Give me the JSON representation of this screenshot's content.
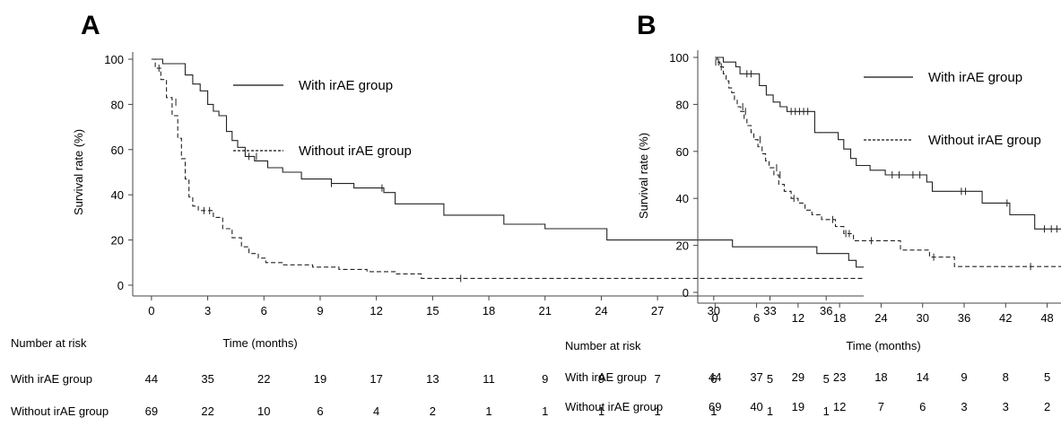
{
  "chart_data": [
    {
      "type": "line",
      "panel_label": "A",
      "xlabel": "Time (months)",
      "ylabel": "Survival rate (%)",
      "xlim": [
        -1,
        38
      ],
      "ylim": [
        0,
        100
      ],
      "xticks": [
        0,
        3,
        6,
        9,
        12,
        15,
        18,
        21,
        24,
        27,
        30,
        33,
        36
      ],
      "yticks": [
        0,
        20,
        40,
        60,
        80,
        100
      ],
      "grid": false,
      "legend_position": "top-right",
      "series": [
        {
          "name": "With irAE group",
          "style": "solid",
          "x": [
            0,
            0.6,
            0.6,
            1.8,
            1.8,
            2.2,
            2.2,
            2.6,
            2.6,
            3.0,
            3.0,
            3.3,
            3.3,
            3.6,
            3.6,
            4.0,
            4.0,
            4.3,
            4.3,
            4.6,
            4.6,
            5.0,
            5.0,
            5.5,
            5.5,
            6.2,
            6.2,
            7.0,
            7.0,
            8.0,
            8.0,
            9.6,
            9.6,
            10.8,
            10.8,
            12.4,
            12.4,
            13.0,
            13.0,
            15.6,
            15.6,
            18.8,
            18.8,
            21.0,
            21.0,
            24.3,
            24.3,
            31.0,
            31.0,
            35.5,
            35.5,
            37.2,
            37.2,
            37.6,
            37.6,
            38.0
          ],
          "y": [
            100,
            100,
            98,
            98,
            93,
            93,
            89,
            89,
            86,
            86,
            80,
            80,
            77,
            77,
            75,
            75,
            68,
            68,
            64,
            64,
            61,
            61,
            57,
            57,
            55,
            55,
            52,
            52,
            50,
            50,
            47,
            47,
            45,
            45,
            43,
            43,
            41,
            41,
            36,
            36,
            31,
            31,
            27,
            27,
            25,
            25,
            20,
            20,
            17,
            17,
            14,
            14,
            11,
            11,
            8,
            8
          ],
          "censored_x": [
            5.2,
            5.6,
            9.6,
            12.3
          ],
          "censored_y": [
            57,
            57,
            45,
            43
          ]
        },
        {
          "name": "Without irAE group",
          "style": "dashed",
          "x": [
            0,
            0.2,
            0.2,
            0.5,
            0.5,
            0.8,
            0.8,
            1.1,
            1.1,
            1.4,
            1.4,
            1.6,
            1.6,
            1.8,
            1.8,
            2.0,
            2.0,
            2.2,
            2.2,
            2.5,
            2.5,
            3.3,
            3.3,
            3.8,
            3.8,
            4.3,
            4.3,
            4.8,
            4.8,
            5.2,
            5.2,
            5.7,
            5.7,
            6.1,
            6.1,
            7.0,
            7.0,
            8.6,
            8.6,
            10.0,
            10.0,
            11.5,
            11.5,
            13.0,
            13.0,
            14.4,
            14.4,
            38.0
          ],
          "y": [
            100,
            100,
            96,
            96,
            91,
            91,
            83,
            83,
            75,
            75,
            65,
            65,
            56,
            56,
            47,
            47,
            39,
            39,
            35,
            35,
            33,
            33,
            30,
            30,
            25,
            25,
            21,
            21,
            17,
            17,
            14,
            14,
            12,
            12,
            10,
            10,
            9,
            9,
            8,
            8,
            7,
            7,
            6,
            6,
            5,
            5,
            3,
            3
          ],
          "censored_x": [
            0.4,
            1.3,
            2.8,
            3.1,
            16.5
          ],
          "censored_y": [
            96,
            81,
            33,
            33,
            3
          ]
        }
      ],
      "legend": [
        {
          "label": "With irAE group",
          "style": "solid"
        },
        {
          "label": "Without irAE group",
          "style": "dashed"
        }
      ],
      "risk_table": {
        "header": "Number at risk",
        "rows": [
          {
            "label": "With irAE group",
            "values": [
              "44",
              "35",
              "22",
              "19",
              "17",
              "13",
              "11",
              "9",
              "9",
              "7",
              "6",
              "5",
              "5"
            ]
          },
          {
            "label": "Without irAE group",
            "values": [
              "69",
              "22",
              "10",
              "6",
              "4",
              "2",
              "1",
              "1",
              "1",
              "1",
              "1",
              "1",
              "1"
            ]
          }
        ]
      }
    },
    {
      "type": "line",
      "panel_label": "B",
      "xlabel": "Time (months)",
      "ylabel": "Survival rate (%)",
      "xlim": [
        -2.5,
        50
      ],
      "ylim": [
        0,
        100
      ],
      "xticks": [
        0,
        6,
        12,
        18,
        24,
        30,
        36,
        42,
        48
      ],
      "yticks": [
        0,
        20,
        40,
        60,
        80,
        100
      ],
      "grid": false,
      "legend_position": "top-right",
      "series": [
        {
          "name": "With irAE group",
          "style": "solid",
          "x": [
            0,
            1.2,
            1.2,
            3.0,
            3.0,
            3.6,
            3.6,
            6.4,
            6.4,
            7.4,
            7.4,
            8.4,
            8.4,
            9.4,
            9.4,
            10.4,
            10.4,
            14.4,
            14.4,
            17.8,
            17.8,
            18.6,
            18.6,
            19.6,
            19.6,
            20.4,
            20.4,
            22.4,
            22.4,
            24.6,
            24.6,
            30.6,
            30.6,
            31.4,
            31.4,
            38.6,
            38.6,
            42.6,
            42.6,
            46.2,
            46.2,
            50.0
          ],
          "y": [
            100,
            100,
            98,
            98,
            96,
            96,
            93,
            93,
            88,
            88,
            84,
            84,
            81,
            81,
            79,
            79,
            77,
            77,
            68,
            68,
            65,
            65,
            61,
            61,
            57,
            57,
            54,
            54,
            52,
            52,
            50,
            50,
            47,
            47,
            43,
            43,
            38,
            38,
            33,
            33,
            27,
            27
          ],
          "censored_x": [
            0.5,
            4.6,
            5.2,
            11.0,
            11.6,
            12.2,
            12.8,
            13.4,
            25.6,
            26.6,
            28.6,
            29.6,
            35.6,
            36.2,
            42.2,
            47.6,
            48.6,
            49.4
          ],
          "censored_y": [
            98,
            93,
            93,
            77,
            77,
            77,
            77,
            77,
            50,
            50,
            50,
            50,
            43,
            43,
            38,
            27,
            27,
            27
          ]
        },
        {
          "name": "Without irAE group",
          "style": "dashed",
          "x": [
            0,
            0.3,
            0.3,
            0.7,
            0.7,
            1.2,
            1.2,
            1.6,
            1.6,
            2.0,
            2.0,
            2.4,
            2.4,
            2.8,
            2.8,
            3.2,
            3.2,
            3.7,
            3.7,
            4.2,
            4.2,
            4.6,
            4.6,
            5.2,
            5.2,
            5.6,
            5.6,
            6.2,
            6.2,
            6.8,
            6.8,
            7.3,
            7.3,
            7.8,
            7.8,
            8.5,
            8.5,
            9.2,
            9.2,
            10.0,
            10.0,
            11.0,
            11.0,
            12.0,
            12.0,
            13.0,
            13.0,
            14.0,
            14.0,
            15.4,
            15.4,
            17.4,
            17.4,
            18.6,
            18.6,
            20.0,
            20.0,
            26.8,
            26.8,
            31.0,
            31.0,
            34.6,
            34.6,
            50.0
          ],
          "y": [
            100,
            100,
            98,
            98,
            96,
            96,
            93,
            93,
            90,
            90,
            87,
            87,
            85,
            85,
            82,
            82,
            79,
            79,
            77,
            77,
            74,
            74,
            71,
            71,
            68,
            68,
            65,
            65,
            62,
            62,
            59,
            59,
            56,
            56,
            53,
            53,
            50,
            50,
            46,
            46,
            43,
            43,
            40,
            40,
            38,
            38,
            35,
            35,
            33,
            33,
            31,
            31,
            28,
            28,
            25,
            25,
            22,
            22,
            18,
            18,
            15,
            15,
            11,
            11
          ],
          "censored_x": [
            0.1,
            0.9,
            4.0,
            4.4,
            6.5,
            8.9,
            9.4,
            11.4,
            17.0,
            18.9,
            19.4,
            22.6,
            31.6,
            45.6
          ],
          "censored_y": [
            98,
            96,
            79,
            77,
            65,
            53,
            50,
            40,
            31,
            25,
            25,
            22,
            15,
            11
          ]
        }
      ],
      "legend": [
        {
          "label": "With irAE group",
          "style": "solid"
        },
        {
          "label": "Without irAE group",
          "style": "dashed"
        }
      ],
      "risk_table": {
        "header": "Number at risk",
        "rows": [
          {
            "label": "With irAE group",
            "values": [
              "44",
              "37",
              "29",
              "23",
              "18",
              "14",
              "9",
              "8",
              "5"
            ]
          },
          {
            "label": "Without irAE group",
            "values": [
              "69",
              "40",
              "19",
              "12",
              "7",
              "6",
              "3",
              "3",
              "2"
            ]
          }
        ]
      }
    }
  ]
}
